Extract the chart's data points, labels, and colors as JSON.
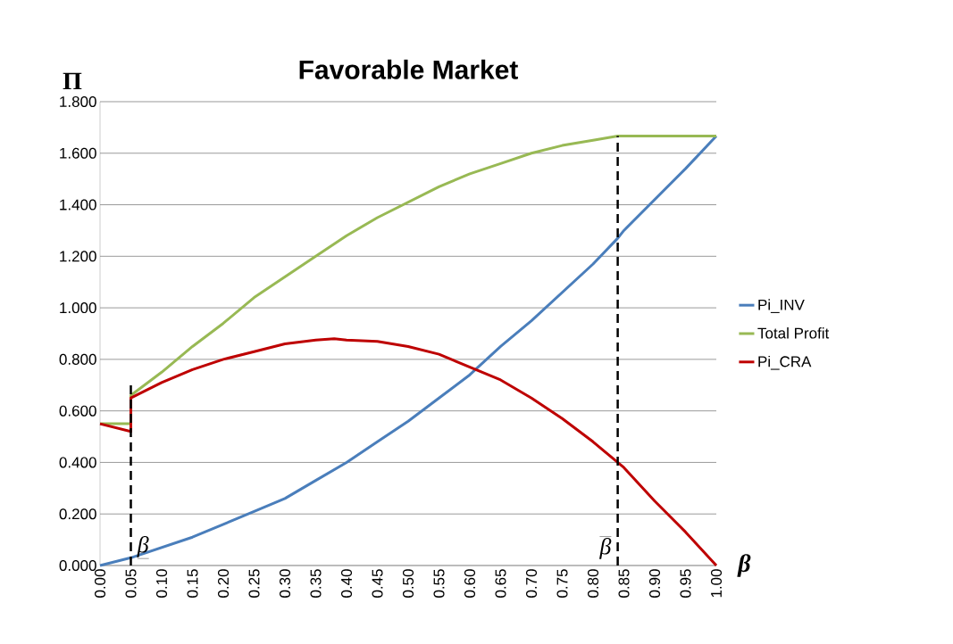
{
  "chart_data": {
    "type": "line",
    "title": "Favorable Market",
    "xlabel": "β",
    "ylabel": "Π",
    "xlim": [
      0,
      1
    ],
    "ylim": [
      0,
      1.8
    ],
    "xticks": [
      {
        "value": 0,
        "label": "0.00"
      },
      {
        "value": 0.05,
        "label": "0.05"
      },
      {
        "value": 0.1,
        "label": "0.10"
      },
      {
        "value": 0.15,
        "label": "0.15"
      },
      {
        "value": 0.2,
        "label": "0.20"
      },
      {
        "value": 0.25,
        "label": "0.25"
      },
      {
        "value": 0.3,
        "label": "0.30"
      },
      {
        "value": 0.35,
        "label": "0.35"
      },
      {
        "value": 0.4,
        "label": "0.40"
      },
      {
        "value": 0.45,
        "label": "0.45"
      },
      {
        "value": 0.5,
        "label": "0.50"
      },
      {
        "value": 0.55,
        "label": "0.55"
      },
      {
        "value": 0.6,
        "label": "0.60"
      },
      {
        "value": 0.65,
        "label": "0.65"
      },
      {
        "value": 0.7,
        "label": "0.70"
      },
      {
        "value": 0.75,
        "label": "0.75"
      },
      {
        "value": 0.8,
        "label": "0.80"
      },
      {
        "value": 0.85,
        "label": "0.85"
      },
      {
        "value": 0.9,
        "label": "0.90"
      },
      {
        "value": 0.95,
        "label": "0.95"
      },
      {
        "value": 1,
        "label": "1.00"
      }
    ],
    "yticks": [
      {
        "value": 0,
        "label": "0.000"
      },
      {
        "value": 0.2,
        "label": "0.200"
      },
      {
        "value": 0.4,
        "label": "0.400"
      },
      {
        "value": 0.6,
        "label": "0.600"
      },
      {
        "value": 0.8,
        "label": "0.800"
      },
      {
        "value": 1.0,
        "label": "1.000"
      },
      {
        "value": 1.2,
        "label": "1.200"
      },
      {
        "value": 1.4,
        "label": "1.400"
      },
      {
        "value": 1.6,
        "label": "1.600"
      },
      {
        "value": 1.8,
        "label": "1.800"
      }
    ],
    "grid": "y",
    "legend": "right",
    "series": [
      {
        "name": "Pi_INV",
        "color": "#4a7ebb",
        "x": [
          0,
          0.05,
          0.1,
          0.15,
          0.2,
          0.25,
          0.3,
          0.35,
          0.4,
          0.45,
          0.5,
          0.55,
          0.6,
          0.65,
          0.7,
          0.75,
          0.8,
          0.84,
          0.85,
          0.9,
          0.95,
          1
        ],
        "values": [
          0,
          0.03,
          0.07,
          0.11,
          0.16,
          0.21,
          0.26,
          0.33,
          0.4,
          0.48,
          0.56,
          0.65,
          0.74,
          0.85,
          0.95,
          1.06,
          1.17,
          1.27,
          1.3,
          1.42,
          1.54,
          1.667
        ]
      },
      {
        "name": "Total Profit",
        "color": "#98b954",
        "x": [
          0,
          0.05,
          0.05,
          0.1,
          0.15,
          0.2,
          0.25,
          0.3,
          0.35,
          0.4,
          0.45,
          0.5,
          0.55,
          0.6,
          0.65,
          0.7,
          0.75,
          0.8,
          0.84,
          1
        ],
        "values": [
          0.55,
          0.55,
          0.66,
          0.75,
          0.85,
          0.94,
          1.04,
          1.12,
          1.2,
          1.28,
          1.35,
          1.41,
          1.47,
          1.52,
          1.56,
          1.6,
          1.63,
          1.65,
          1.667,
          1.667
        ]
      },
      {
        "name": "Pi_CRA",
        "color": "#be0000",
        "x": [
          0,
          0.05,
          0.05,
          0.1,
          0.15,
          0.2,
          0.25,
          0.3,
          0.35,
          0.38,
          0.4,
          0.45,
          0.5,
          0.55,
          0.6,
          0.65,
          0.7,
          0.75,
          0.8,
          0.84,
          0.85,
          0.9,
          0.95,
          1
        ],
        "values": [
          0.55,
          0.52,
          0.65,
          0.71,
          0.76,
          0.8,
          0.83,
          0.86,
          0.875,
          0.88,
          0.875,
          0.87,
          0.85,
          0.82,
          0.77,
          0.72,
          0.65,
          0.57,
          0.48,
          0.4,
          0.38,
          0.25,
          0.13,
          0
        ]
      },
      {
        "color": "#000000",
        "line_style": "dashed",
        "x": [
          0.05,
          0.05
        ],
        "values": [
          0,
          0.7
        ]
      },
      {
        "color": "#000000",
        "line_style": "dashed",
        "x": [
          0.84,
          0.84
        ],
        "values": [
          0,
          1.667
        ]
      }
    ],
    "annotations": [
      {
        "text": "β",
        "x": 0.05,
        "y": 0
      },
      {
        "text": "β",
        "x": 0.84,
        "y": 0
      }
    ]
  }
}
